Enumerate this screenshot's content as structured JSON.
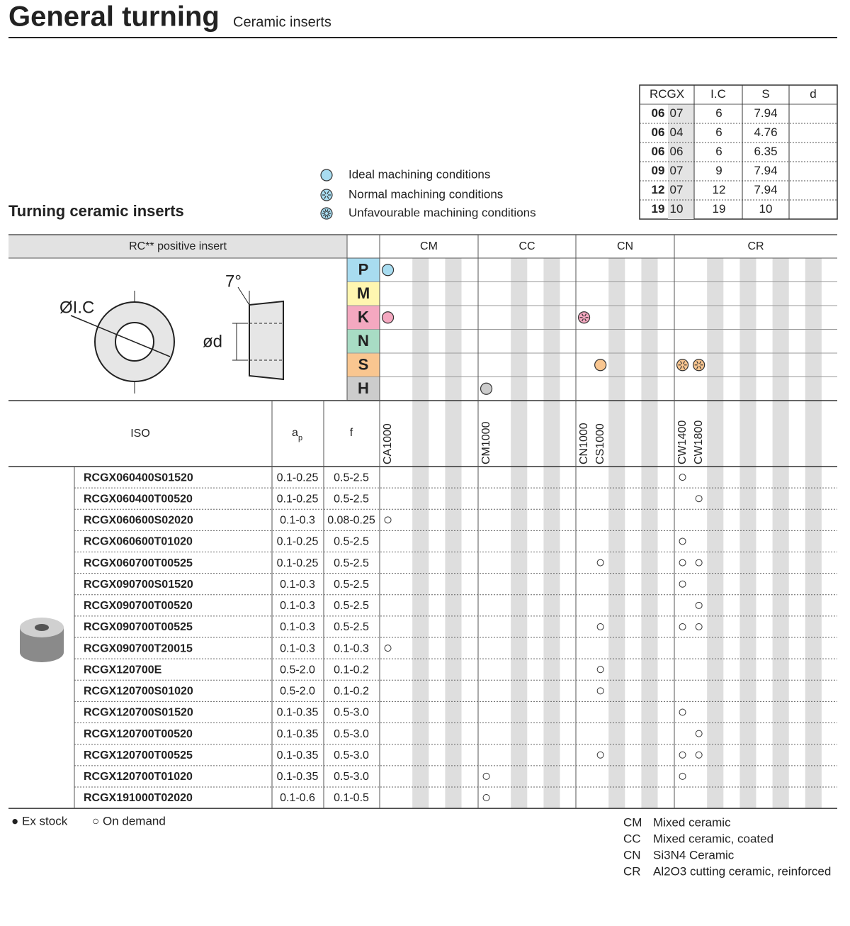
{
  "header": {
    "title": "General turning",
    "subtitle": "Ceramic inserts"
  },
  "section_title": "Turning ceramic inserts",
  "legend": [
    "Ideal machining conditions",
    "Normal machining conditions",
    "Unfavourable machining conditions"
  ],
  "dimensions": {
    "columns": [
      "RCGX",
      "I.C",
      "S",
      "d"
    ],
    "rows": [
      {
        "code": "06",
        "size": "07",
        "ic": "6",
        "s": "7.94"
      },
      {
        "code": "06",
        "size": "04",
        "ic": "6",
        "s": "4.76"
      },
      {
        "code": "06",
        "size": "06",
        "ic": "6",
        "s": "6.35"
      },
      {
        "code": "09",
        "size": "07",
        "ic": "9",
        "s": "7.94"
      },
      {
        "code": "12",
        "size": "07",
        "ic": "12",
        "s": "7.94"
      },
      {
        "code": "19",
        "size": "10",
        "ic": "19",
        "s": "10"
      }
    ]
  },
  "diagram": {
    "diameter": "ØI.C",
    "angle": "7°",
    "d": "ød"
  },
  "table": {
    "insert_header": "RC** positive insert",
    "groups": [
      {
        "name": "CM",
        "grades": [
          "CA1000"
        ]
      },
      {
        "name": "CC",
        "grades": [
          "CM1000"
        ]
      },
      {
        "name": "CN",
        "grades": [
          "CN1000",
          "CS1000"
        ]
      },
      {
        "name": "CR",
        "grades": [
          "CW1400",
          "CW1800"
        ]
      }
    ],
    "materials": [
      {
        "letter": "P",
        "color": "#a8dcf0",
        "ideal": [
          "CA1000"
        ],
        "normal": []
      },
      {
        "letter": "M",
        "color": "#fff6b0",
        "ideal": [],
        "normal": []
      },
      {
        "letter": "K",
        "color": "#f4a8c0",
        "ideal": [
          "CA1000"
        ],
        "normal": [
          "CN1000"
        ]
      },
      {
        "letter": "N",
        "color": "#a8dcc4",
        "ideal": [],
        "normal": []
      },
      {
        "letter": "S",
        "color": "#f9c690",
        "ideal": [
          "CS1000"
        ],
        "normal": [
          "CW1400",
          "CW1800"
        ]
      },
      {
        "letter": "H",
        "color": "#cccccc",
        "ideal": [
          "CM1000"
        ],
        "normal": []
      }
    ],
    "iso_header": "ISO",
    "ap_header": {
      "main": "a",
      "sub": "p"
    },
    "f_header": "f",
    "rows": [
      {
        "iso": "RCGX060400S01520",
        "ap": "0.1-0.25",
        "f": "0.5-2.5",
        "on_demand": [
          "CW1400"
        ]
      },
      {
        "iso": "RCGX060400T00520",
        "ap": "0.1-0.25",
        "f": "0.5-2.5",
        "on_demand": [
          "CW1800"
        ]
      },
      {
        "iso": "RCGX060600S02020",
        "ap": "0.1-0.3",
        "f": "0.08-0.25",
        "on_demand": [
          "CA1000"
        ]
      },
      {
        "iso": "RCGX060600T01020",
        "ap": "0.1-0.25",
        "f": "0.5-2.5",
        "on_demand": [
          "CW1400"
        ]
      },
      {
        "iso": "RCGX060700T00525",
        "ap": "0.1-0.25",
        "f": "0.5-2.5",
        "on_demand": [
          "CS1000",
          "CW1400",
          "CW1800"
        ]
      },
      {
        "iso": "RCGX090700S01520",
        "ap": "0.1-0.3",
        "f": "0.5-2.5",
        "on_demand": [
          "CW1400"
        ]
      },
      {
        "iso": "RCGX090700T00520",
        "ap": "0.1-0.3",
        "f": "0.5-2.5",
        "on_demand": [
          "CW1800"
        ]
      },
      {
        "iso": "RCGX090700T00525",
        "ap": "0.1-0.3",
        "f": "0.5-2.5",
        "on_demand": [
          "CS1000",
          "CW1400",
          "CW1800"
        ]
      },
      {
        "iso": "RCGX090700T20015",
        "ap": "0.1-0.3",
        "f": "0.1-0.3",
        "on_demand": [
          "CA1000"
        ]
      },
      {
        "iso": "RCGX120700E",
        "ap": "0.5-2.0",
        "f": "0.1-0.2",
        "on_demand": [
          "CS1000"
        ]
      },
      {
        "iso": "RCGX120700S01020",
        "ap": "0.5-2.0",
        "f": "0.1-0.2",
        "on_demand": [
          "CS1000"
        ]
      },
      {
        "iso": "RCGX120700S01520",
        "ap": "0.1-0.35",
        "f": "0.5-3.0",
        "on_demand": [
          "CW1400"
        ]
      },
      {
        "iso": "RCGX120700T00520",
        "ap": "0.1-0.35",
        "f": "0.5-3.0",
        "on_demand": [
          "CW1800"
        ]
      },
      {
        "iso": "RCGX120700T00525",
        "ap": "0.1-0.35",
        "f": "0.5-3.0",
        "on_demand": [
          "CS1000",
          "CW1400",
          "CW1800"
        ]
      },
      {
        "iso": "RCGX120700T01020",
        "ap": "0.1-0.35",
        "f": "0.5-3.0",
        "on_demand": [
          "CM1000",
          "CW1400"
        ]
      },
      {
        "iso": "RCGX191000T02020",
        "ap": "0.1-0.6",
        "f": "0.1-0.5",
        "on_demand": [
          "CM1000"
        ]
      }
    ]
  },
  "stock_legend": [
    "● Ex stock",
    "○ On demand"
  ],
  "grade_legend": [
    {
      "code": "CM",
      "text": "Mixed ceramic"
    },
    {
      "code": "CC",
      "text": "Mixed ceramic, coated"
    },
    {
      "code": "CN",
      "text": "Si3N4 Ceramic"
    },
    {
      "code": "CR",
      "text": "Al2O3 cutting ceramic, reinforced"
    }
  ]
}
